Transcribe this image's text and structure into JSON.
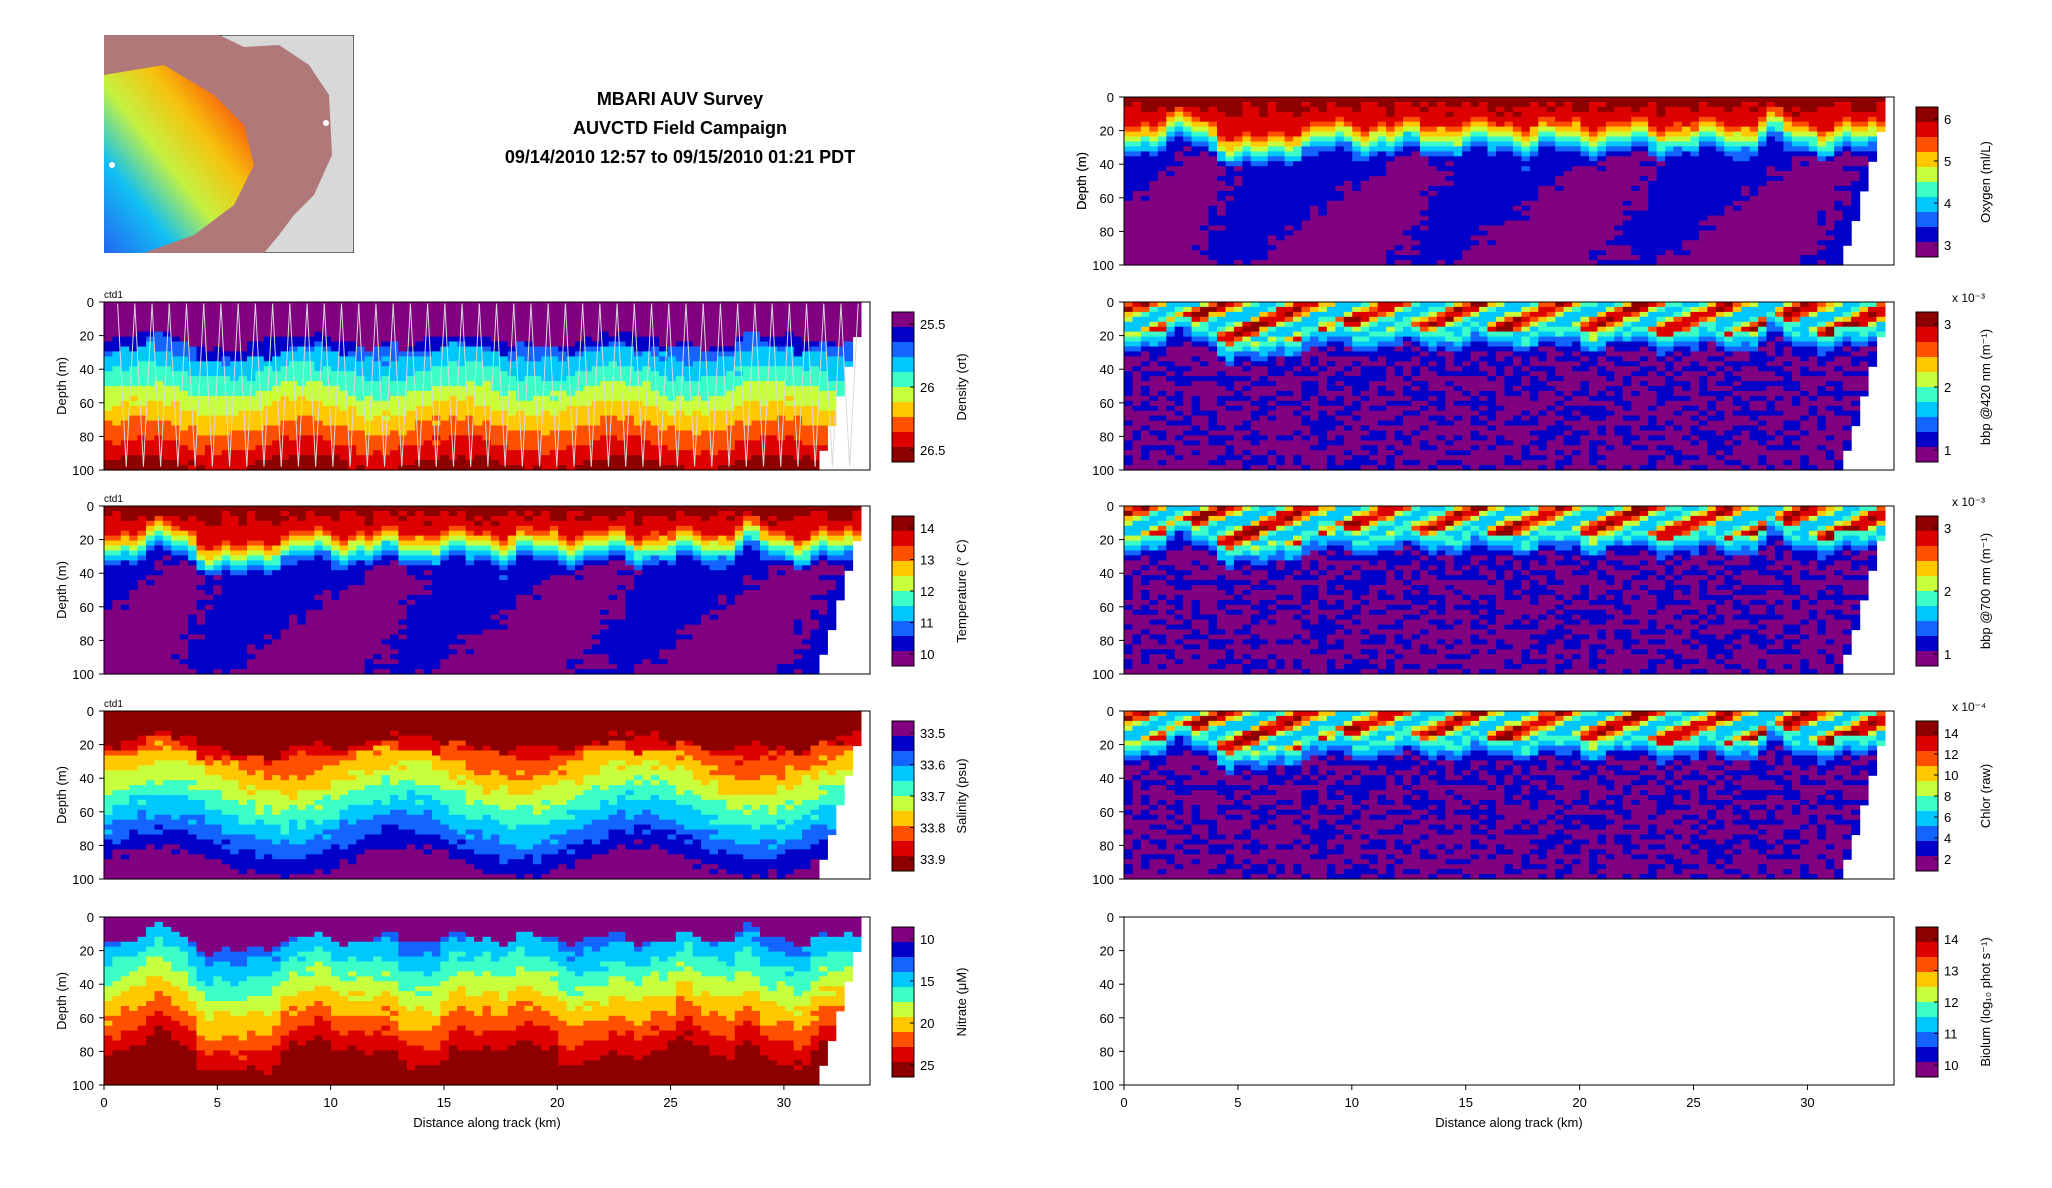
{
  "header": {
    "title": "MBARI AUV Survey",
    "subtitle": "AUVCTD Field Campaign",
    "time_range": "09/14/2010 12:57 to 09/15/2010 01:21 PDT"
  },
  "colors": {
    "jet": [
      "#800080",
      "#0000c8",
      "#1464ff",
      "#00c8ff",
      "#3cffc8",
      "#c8ff3c",
      "#ffc800",
      "#ff5000",
      "#dc0000",
      "#8c0000"
    ],
    "mask": "#ffffff",
    "frame": "#000000",
    "trace": "#d8d8d8",
    "map_land": "#b07878",
    "map_bg": "#d8d8d8"
  },
  "chart_data": [
    {
      "id": "density",
      "type": "heatmap",
      "source_label": "ctd1",
      "ylabel": "Depth (m)",
      "xlabel": "",
      "xlim": [
        0,
        33.8
      ],
      "ylim": [
        0,
        100
      ],
      "y_ticks": [
        "0",
        "20",
        "40",
        "60",
        "80",
        "100"
      ],
      "x_ticks": [],
      "colorbar": {
        "label": "Density (σt)",
        "ticks": [
          "25.5",
          "26",
          "26.5"
        ],
        "reversed": false
      },
      "profile": "density",
      "show_traces": true
    },
    {
      "id": "temperature",
      "type": "heatmap",
      "source_label": "ctd1",
      "ylabel": "Depth (m)",
      "xlabel": "",
      "xlim": [
        0,
        33.8
      ],
      "ylim": [
        0,
        100
      ],
      "y_ticks": [
        "0",
        "20",
        "40",
        "60",
        "80",
        "100"
      ],
      "x_ticks": [],
      "colorbar": {
        "label": "Temperature (° C)",
        "ticks": [
          "14",
          "13",
          "12",
          "11",
          "10"
        ],
        "reversed": true
      },
      "profile": "thermo",
      "show_traces": false
    },
    {
      "id": "salinity",
      "type": "heatmap",
      "source_label": "ctd1",
      "ylabel": "Depth (m)",
      "xlabel": "",
      "xlim": [
        0,
        33.8
      ],
      "ylim": [
        0,
        100
      ],
      "y_ticks": [
        "0",
        "20",
        "40",
        "60",
        "80",
        "100"
      ],
      "x_ticks": [],
      "colorbar": {
        "label": "Salinity (psu)",
        "ticks": [
          "33.5",
          "33.6",
          "33.7",
          "33.8",
          "33.9"
        ],
        "reversed": false
      },
      "profile": "salinity",
      "show_traces": false
    },
    {
      "id": "nitrate",
      "type": "heatmap",
      "source_label": "",
      "ylabel": "Depth (m)",
      "xlabel": "Distance along track (km)",
      "xlim": [
        0,
        33.8
      ],
      "ylim": [
        0,
        100
      ],
      "y_ticks": [
        "0",
        "20",
        "40",
        "60",
        "80",
        "100"
      ],
      "x_ticks": [
        "0",
        "5",
        "10",
        "15",
        "20",
        "25",
        "30"
      ],
      "colorbar": {
        "label": "Nitrate (μM)",
        "ticks": [
          "10",
          "15",
          "20",
          "25"
        ],
        "reversed": false
      },
      "profile": "nitrate",
      "show_traces": false
    },
    {
      "id": "oxygen",
      "type": "heatmap",
      "source_label": "",
      "ylabel": "Depth (m)",
      "xlabel": "",
      "xlim": [
        0,
        33.8
      ],
      "ylim": [
        0,
        100
      ],
      "y_ticks": [
        "0",
        "20",
        "40",
        "60",
        "80",
        "100"
      ],
      "x_ticks": [],
      "colorbar": {
        "label": "Oxygen (ml/L)",
        "ticks": [
          "6",
          "5",
          "4",
          "3"
        ],
        "reversed": true
      },
      "profile": "thermo",
      "show_traces": false
    },
    {
      "id": "bbp420",
      "type": "heatmap",
      "source_label": "",
      "ylabel": "",
      "xlabel": "",
      "xlim": [
        0,
        33.8
      ],
      "ylim": [
        0,
        100
      ],
      "y_ticks": [
        "0",
        "20",
        "40",
        "60",
        "80",
        "100"
      ],
      "x_ticks": [],
      "colorbar": {
        "label": "bbp @420 nm (m⁻¹)",
        "ticks": [
          "3",
          "2",
          "1"
        ],
        "reversed": true,
        "exponent": "x 10⁻³"
      },
      "profile": "bloom",
      "show_traces": false
    },
    {
      "id": "bbp700",
      "type": "heatmap",
      "source_label": "",
      "ylabel": "",
      "xlabel": "",
      "xlim": [
        0,
        33.8
      ],
      "ylim": [
        0,
        100
      ],
      "y_ticks": [
        "0",
        "20",
        "40",
        "60",
        "80",
        "100"
      ],
      "x_ticks": [],
      "colorbar": {
        "label": "bbp @700 nm (m⁻¹)",
        "ticks": [
          "3",
          "2",
          "1"
        ],
        "reversed": true,
        "exponent": "x 10⁻³"
      },
      "profile": "bloom",
      "show_traces": false
    },
    {
      "id": "chlor",
      "type": "heatmap",
      "source_label": "",
      "ylabel": "",
      "xlabel": "",
      "xlim": [
        0,
        33.8
      ],
      "ylim": [
        0,
        100
      ],
      "y_ticks": [
        "0",
        "20",
        "40",
        "60",
        "80",
        "100"
      ],
      "x_ticks": [],
      "colorbar": {
        "label": "Chlor (raw)",
        "ticks": [
          "14",
          "12",
          "10",
          "8",
          "6",
          "4",
          "2"
        ],
        "reversed": true,
        "exponent": "x 10⁻⁴"
      },
      "profile": "chlor",
      "show_traces": false
    },
    {
      "id": "biolum",
      "type": "heatmap",
      "source_label": "",
      "ylabel": "",
      "xlabel": "Distance along track (km)",
      "xlim": [
        0,
        33.8
      ],
      "ylim": [
        0,
        100
      ],
      "y_ticks": [
        "0",
        "20",
        "40",
        "60",
        "80",
        "100"
      ],
      "x_ticks": [
        "0",
        "5",
        "10",
        "15",
        "20",
        "25",
        "30"
      ],
      "colorbar": {
        "label": "Biolum (log₁₀ phot s⁻¹)",
        "ticks": [
          "14",
          "13",
          "12",
          "11",
          "10"
        ],
        "reversed": true
      },
      "profile": "empty",
      "show_traces": false
    }
  ]
}
